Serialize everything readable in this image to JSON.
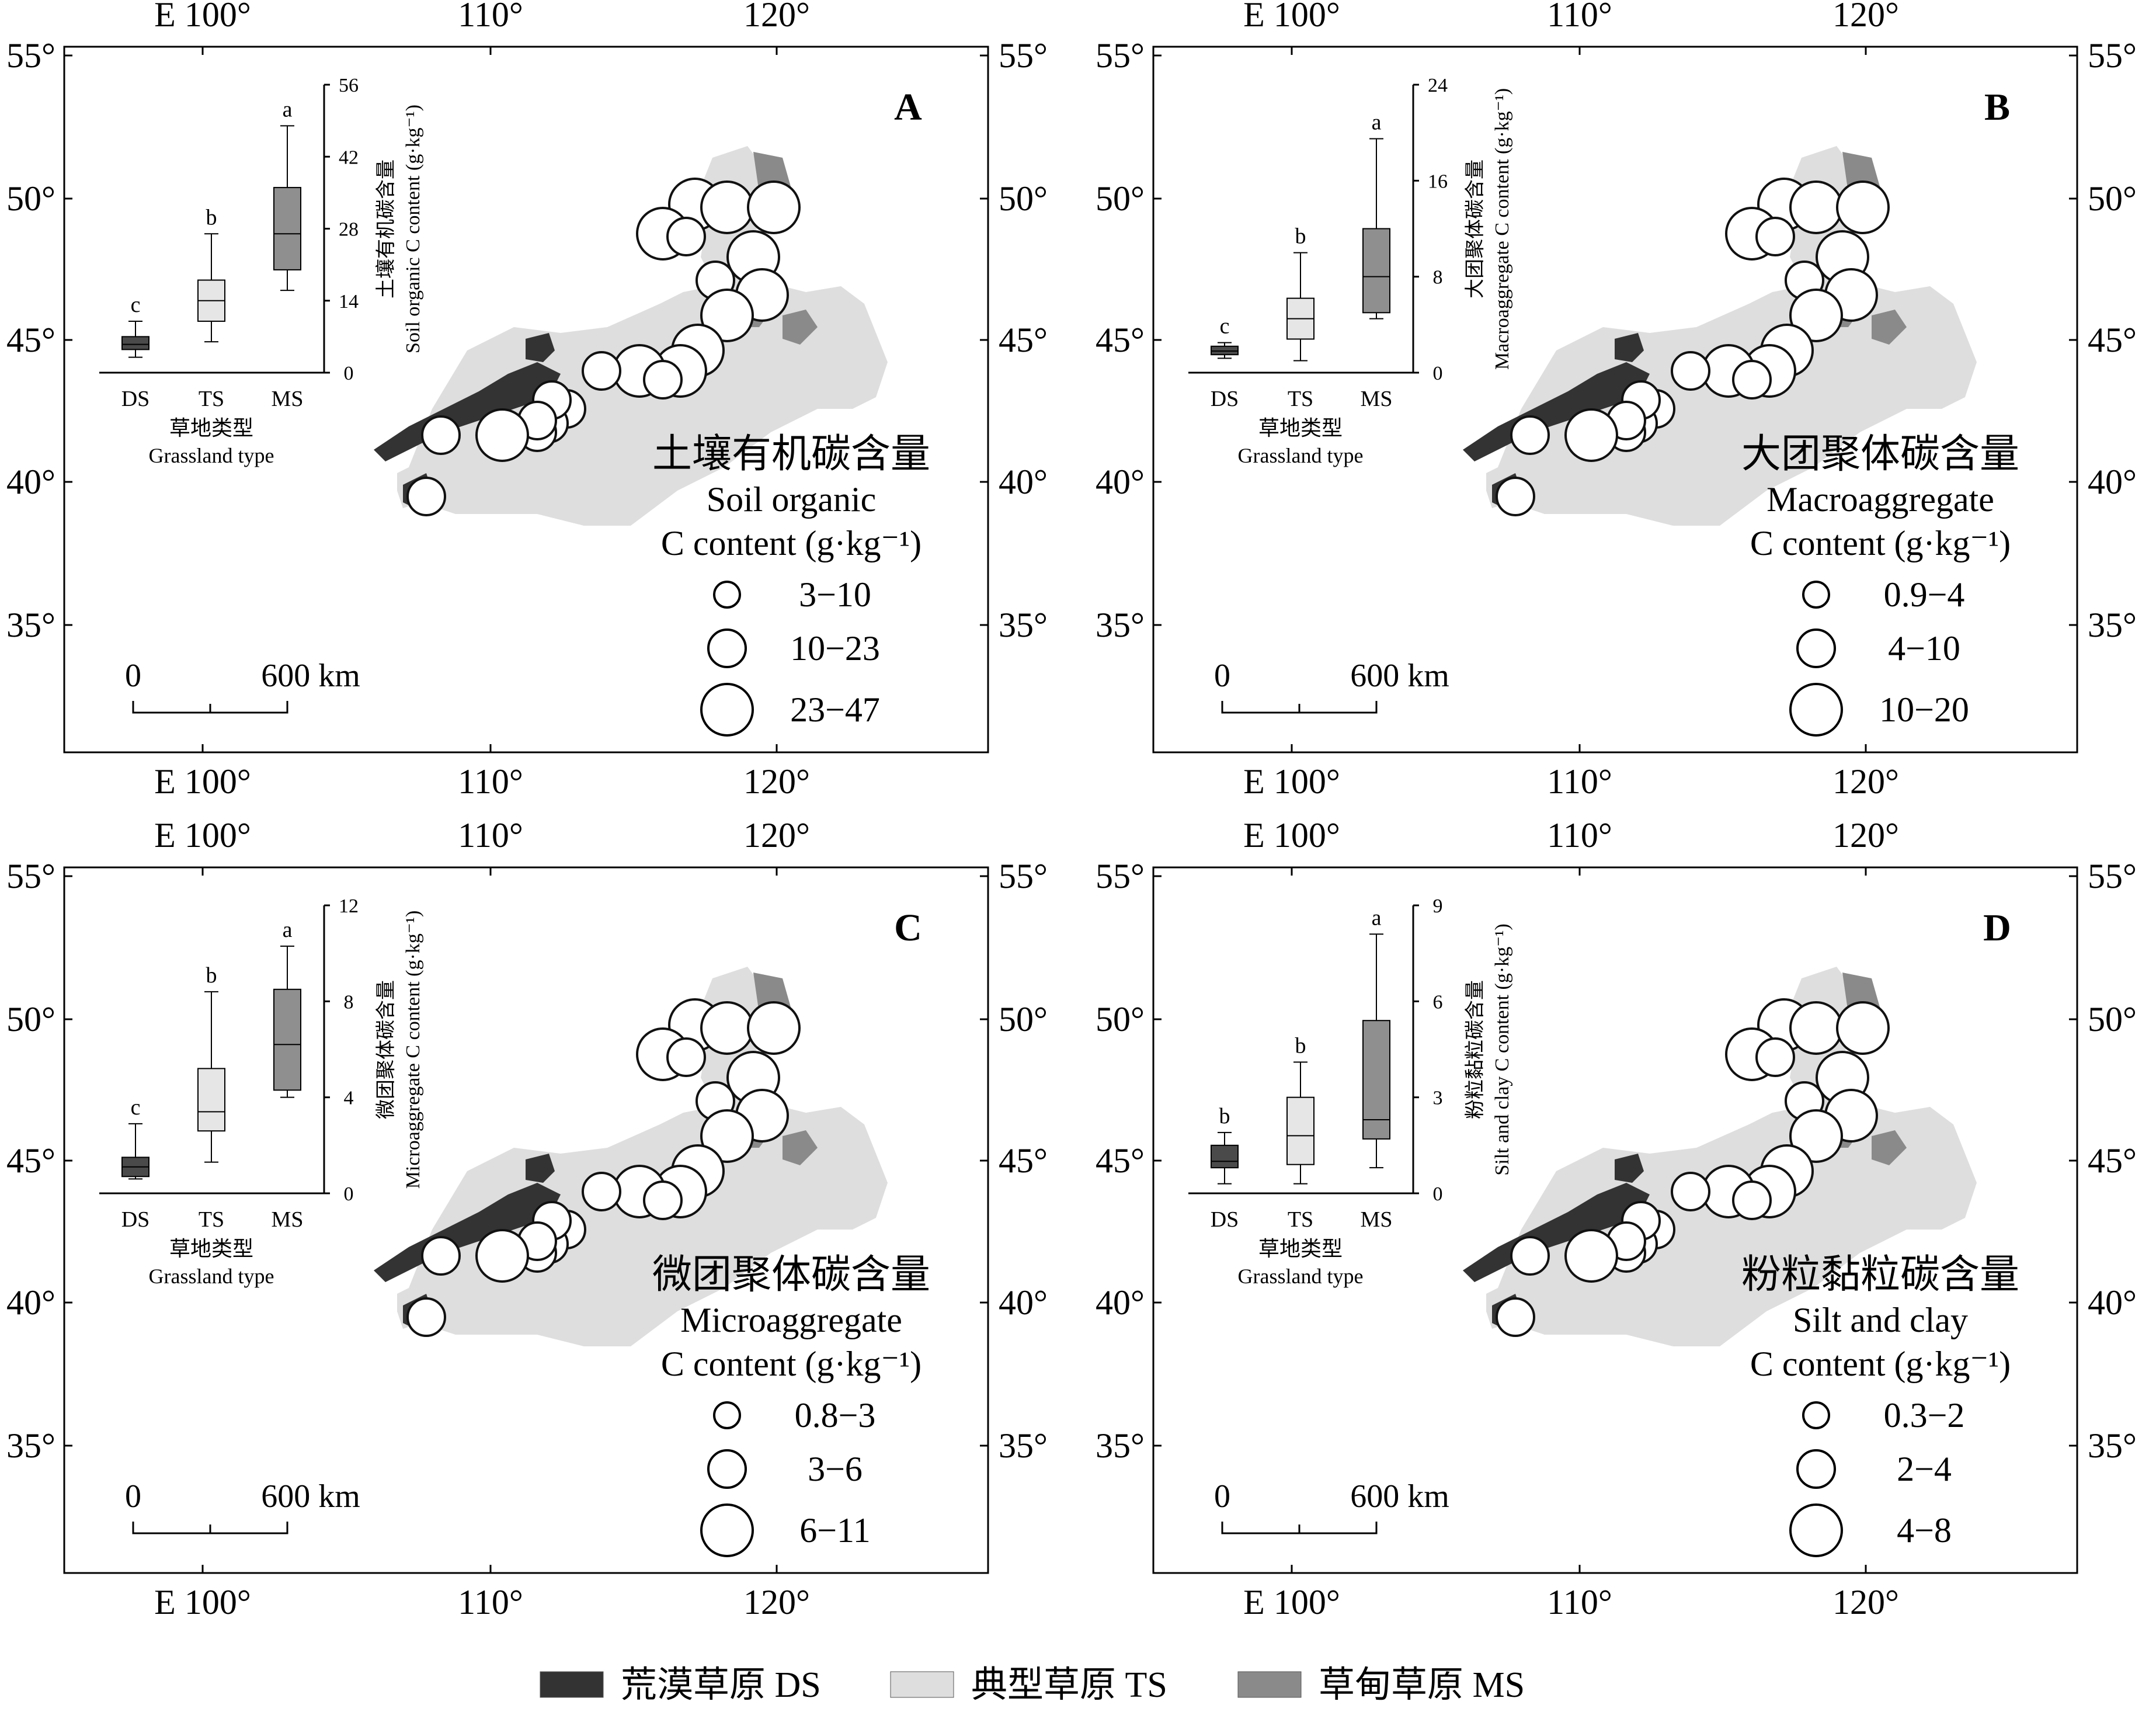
{
  "longitude_ticks": [
    "E 100°",
    "110°",
    "120°"
  ],
  "latitude_ticks": [
    "55°",
    "50°",
    "45°",
    "40°",
    "35°"
  ],
  "scale_bar": {
    "start_label": "0",
    "end_label": "600 km"
  },
  "inset": {
    "categories": [
      "DS",
      "TS",
      "MS"
    ],
    "xlabel_zh": "草地类型",
    "xlabel_en": "Grassland type"
  },
  "panels": [
    {
      "letter": "A",
      "legend_zh": "土壤有机碳含量",
      "legend_en_lines": [
        "Soil organic",
        "C content (g·kg⁻¹)"
      ],
      "bubble_classes": [
        "3−10",
        "10−23",
        "23−47"
      ],
      "inset": {
        "ylabel_zh": "土壤有机碳含量",
        "ylabel_en": "Soil organic C content (g·kg⁻¹)",
        "yticks": [
          "0",
          "14",
          "28",
          "42",
          "56"
        ],
        "ymax": 56,
        "boxes": [
          {
            "category": "DS",
            "min": 3,
            "q1": 4.5,
            "median": 5.5,
            "q3": 7,
            "max": 10,
            "letter": "c",
            "color": "#4a4a4a"
          },
          {
            "category": "TS",
            "min": 6,
            "q1": 10,
            "median": 14,
            "q3": 18,
            "max": 27,
            "letter": "b",
            "color": "#e6e6e6"
          },
          {
            "category": "MS",
            "min": 16,
            "q1": 20,
            "median": 27,
            "q3": 36,
            "max": 48,
            "letter": "a",
            "color": "#8f8f8f"
          }
        ]
      }
    },
    {
      "letter": "B",
      "legend_zh": "大团聚体碳含量",
      "legend_en_lines": [
        "Macroaggregate",
        "C content (g·kg⁻¹)"
      ],
      "bubble_classes": [
        "0.9−4",
        "4−10",
        "10−20"
      ],
      "inset": {
        "ylabel_zh": "大团聚体碳含量",
        "ylabel_en": "Macroaggregate C content (g·kg⁻¹)",
        "yticks": [
          "0",
          "8",
          "16",
          "24"
        ],
        "ymax": 24,
        "boxes": [
          {
            "category": "DS",
            "min": 1.2,
            "q1": 1.5,
            "median": 1.8,
            "q3": 2.2,
            "max": 2.5,
            "letter": "c",
            "color": "#4a4a4a"
          },
          {
            "category": "TS",
            "min": 1,
            "q1": 2.8,
            "median": 4.5,
            "q3": 6.2,
            "max": 10,
            "letter": "b",
            "color": "#e6e6e6"
          },
          {
            "category": "MS",
            "min": 4.5,
            "q1": 5,
            "median": 8,
            "q3": 12,
            "max": 19.5,
            "letter": "a",
            "color": "#8f8f8f"
          }
        ]
      }
    },
    {
      "letter": "C",
      "legend_zh": "微团聚体碳含量",
      "legend_en_lines": [
        "Microaggregate",
        "C content (g·kg⁻¹)"
      ],
      "bubble_classes": [
        "0.8−3",
        "3−6",
        "6−11"
      ],
      "inset": {
        "ylabel_zh": "微团聚体碳含量",
        "ylabel_en": "Microaggregate C content (g·kg⁻¹)",
        "yticks": [
          "0",
          "4",
          "8",
          "12"
        ],
        "ymax": 12,
        "boxes": [
          {
            "category": "DS",
            "min": 0.6,
            "q1": 0.7,
            "median": 1.1,
            "q3": 1.5,
            "max": 2.9,
            "letter": "c",
            "color": "#4a4a4a"
          },
          {
            "category": "TS",
            "min": 1.3,
            "q1": 2.6,
            "median": 3.4,
            "q3": 5.2,
            "max": 8.4,
            "letter": "b",
            "color": "#e6e6e6"
          },
          {
            "category": "MS",
            "min": 4,
            "q1": 4.3,
            "median": 6.2,
            "q3": 8.5,
            "max": 10.3,
            "letter": "a",
            "color": "#8f8f8f"
          }
        ]
      }
    },
    {
      "letter": "D",
      "legend_zh": "粉粒黏粒碳含量",
      "legend_en_lines": [
        "Silt and clay",
        "C content (g·kg⁻¹)"
      ],
      "bubble_classes": [
        "0.3−2",
        "2−4",
        "4−8"
      ],
      "inset": {
        "ylabel_zh": "粉粒黏粒碳含量",
        "ylabel_en": "Silt and clay C content (g·kg⁻¹)",
        "yticks": [
          "0",
          "3",
          "6",
          "9"
        ],
        "ymax": 9,
        "boxes": [
          {
            "category": "DS",
            "min": 0.3,
            "q1": 0.8,
            "median": 1,
            "q3": 1.5,
            "max": 1.9,
            "letter": "b",
            "color": "#4a4a4a"
          },
          {
            "category": "TS",
            "min": 0.3,
            "q1": 0.9,
            "median": 1.8,
            "q3": 3,
            "max": 4.1,
            "letter": "b",
            "color": "#e6e6e6"
          },
          {
            "category": "MS",
            "min": 0.8,
            "q1": 1.7,
            "median": 2.3,
            "q3": 5.4,
            "max": 8.1,
            "letter": "a",
            "color": "#8f8f8f"
          }
        ]
      }
    }
  ],
  "bottom_legend": [
    {
      "label": "荒漠草原 DS",
      "color": "#333333"
    },
    {
      "label": "典型草原 TS",
      "color": "#dedede"
    },
    {
      "label": "草甸草原 MS",
      "color": "#8a8a8a"
    }
  ],
  "colors": {
    "desert_steppe": "#333333",
    "typical_steppe": "#dedede",
    "meadow_steppe": "#8a8a8a",
    "bubble_fill": "#ffffff",
    "bubble_stroke": "#111111"
  }
}
